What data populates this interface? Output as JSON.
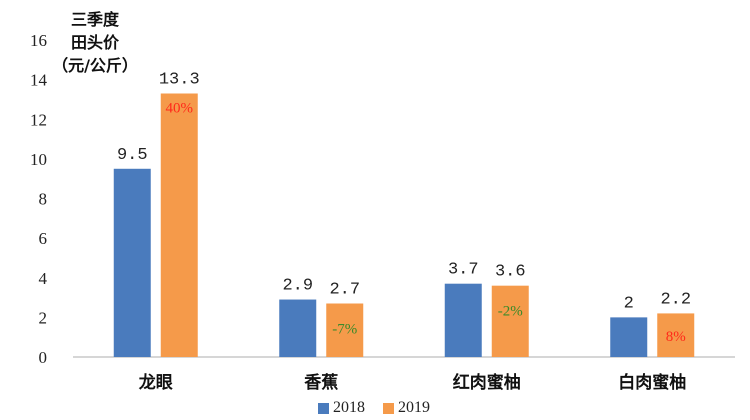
{
  "chart_data": {
    "type": "bar",
    "title": "",
    "unit_label": [
      "三季度",
      "田头价",
      "（元/公斤）"
    ],
    "categories": [
      "龙眼",
      "香蕉",
      "红肉蜜柚",
      "白肉蜜柚"
    ],
    "series": [
      {
        "name": "2018",
        "color": "#4a7bbd",
        "values": [
          9.5,
          2.9,
          3.7,
          2
        ],
        "labels": [
          "9.5",
          "2.9",
          "3.7",
          "2"
        ]
      },
      {
        "name": "2019",
        "color": "#f59a4a",
        "values": [
          13.3,
          2.7,
          3.6,
          2.2
        ],
        "labels": [
          "13.3",
          "2.7",
          "3.6",
          "2.2"
        ]
      }
    ],
    "annotations": [
      {
        "category": "龙眼",
        "text": "40%",
        "color": "#ff2a1a"
      },
      {
        "category": "香蕉",
        "text": "-7%",
        "color": "#3a8a2a"
      },
      {
        "category": "红肉蜜柚",
        "text": "-2%",
        "color": "#3a8a2a"
      },
      {
        "category": "白肉蜜柚",
        "text": "8%",
        "color": "#ff2a1a"
      }
    ],
    "ylim": [
      0,
      16
    ],
    "yticks": [
      "0",
      "2",
      "4",
      "6",
      "8",
      "10",
      "12",
      "14",
      "16"
    ],
    "xlabel": "",
    "ylabel": "",
    "legend_position": "bottom"
  }
}
